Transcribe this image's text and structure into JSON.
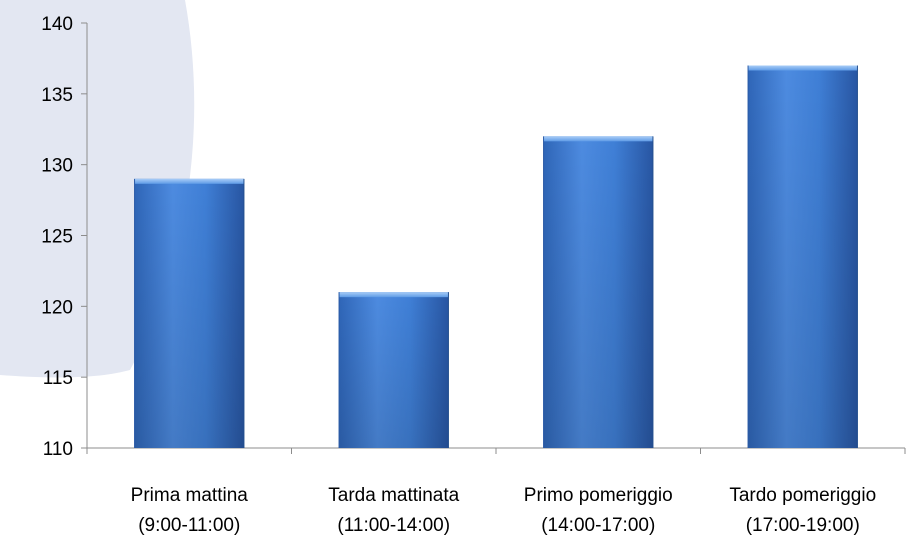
{
  "chart_data": {
    "type": "bar",
    "title": "",
    "xlabel": "",
    "ylabel": "",
    "categories": [
      [
        "Prima mattina",
        "(9:00-11:00)"
      ],
      [
        "Tarda mattinata",
        "(11:00-14:00)"
      ],
      [
        "Primo pomeriggio",
        "(14:00-17:00)"
      ],
      [
        "Tardo pomeriggio",
        "(17:00-19:00)"
      ]
    ],
    "values": [
      129,
      121,
      132,
      137
    ],
    "ylim": [
      110,
      140
    ],
    "yticks": [
      110,
      115,
      120,
      125,
      130,
      135,
      140
    ],
    "grid": false,
    "legend": "none",
    "colors": {
      "bar_light": "#5592e0",
      "bar_mid": "#3a78cf",
      "bar_dark": "#2a5fad",
      "bar_top": "#7db2f0",
      "axis": "#8c8c8c",
      "background_shape": "#e3e7f2"
    }
  }
}
